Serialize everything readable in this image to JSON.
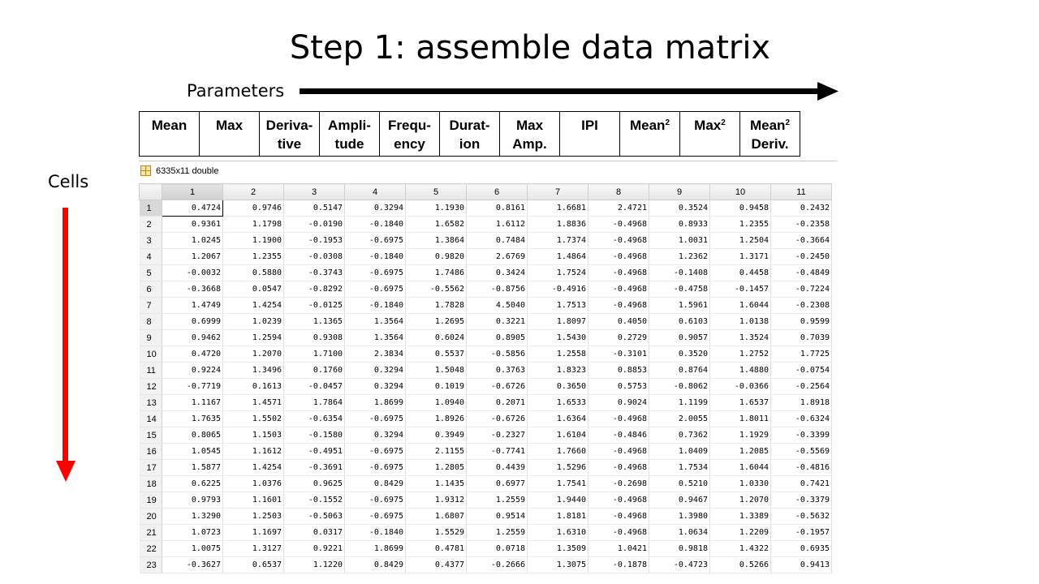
{
  "title": "Step 1: assemble data matrix",
  "parameters_label": "Parameters",
  "cells_label": "Cells",
  "colors": {
    "param_arrow": "#000000",
    "cells_arrow": "#ff0000"
  },
  "header_columns": [
    {
      "line1": "Mean",
      "line2": "",
      "sup": ""
    },
    {
      "line1": "Max",
      "line2": "",
      "sup": ""
    },
    {
      "line1": "Deriva-",
      "line2": "tive",
      "sup": ""
    },
    {
      "line1": "Ampli-",
      "line2": "tude",
      "sup": ""
    },
    {
      "line1": "Frequ-",
      "line2": "ency",
      "sup": ""
    },
    {
      "line1": "Durat-",
      "line2": "ion",
      "sup": ""
    },
    {
      "line1": "Max",
      "line2": "Amp.",
      "sup": ""
    },
    {
      "line1": "IPI",
      "line2": "",
      "sup": ""
    },
    {
      "line1": "Mean",
      "line2": "",
      "sup": "2"
    },
    {
      "line1": "Max",
      "line2": "",
      "sup": "2"
    },
    {
      "line1": "Mean",
      "line2": "Deriv.",
      "sup": "2"
    }
  ],
  "matrix_label": "6335x11 double",
  "matrix_icon": "grid-icon",
  "column_numbers": [
    "1",
    "2",
    "3",
    "4",
    "5",
    "6",
    "7",
    "8",
    "9",
    "10",
    "11"
  ],
  "rows": [
    [
      "1",
      "0.4724",
      "0.9746",
      "0.5147",
      "0.3294",
      "1.1930",
      "0.8161",
      "1.6681",
      "2.4721",
      "0.3524",
      "0.9458",
      "0.2432"
    ],
    [
      "2",
      "0.9361",
      "1.1798",
      "-0.0190",
      "-0.1840",
      "1.6582",
      "1.6112",
      "1.8836",
      "-0.4968",
      "0.8933",
      "1.2355",
      "-0.2358"
    ],
    [
      "3",
      "1.0245",
      "1.1900",
      "-0.1953",
      "-0.6975",
      "1.3864",
      "0.7484",
      "1.7374",
      "-0.4968",
      "1.0031",
      "1.2504",
      "-0.3664"
    ],
    [
      "4",
      "1.2067",
      "1.2355",
      "-0.0308",
      "-0.1840",
      "0.9820",
      "2.6769",
      "1.4864",
      "-0.4968",
      "1.2362",
      "1.3171",
      "-0.2450"
    ],
    [
      "5",
      "-0.0032",
      "0.5880",
      "-0.3743",
      "-0.6975",
      "1.7486",
      "0.3424",
      "1.7524",
      "-0.4968",
      "-0.1408",
      "0.4458",
      "-0.4849"
    ],
    [
      "6",
      "-0.3668",
      "0.0547",
      "-0.8292",
      "-0.6975",
      "-0.5562",
      "-0.8756",
      "-0.4916",
      "-0.4968",
      "-0.4758",
      "-0.1457",
      "-0.7224"
    ],
    [
      "7",
      "1.4749",
      "1.4254",
      "-0.0125",
      "-0.1840",
      "1.7828",
      "4.5040",
      "1.7513",
      "-0.4968",
      "1.5961",
      "1.6044",
      "-0.2308"
    ],
    [
      "8",
      "0.6999",
      "1.0239",
      "1.1365",
      "1.3564",
      "1.2695",
      "0.3221",
      "1.8097",
      "0.4050",
      "0.6103",
      "1.0138",
      "0.9599"
    ],
    [
      "9",
      "0.9462",
      "1.2594",
      "0.9308",
      "1.3564",
      "0.6024",
      "0.8905",
      "1.5430",
      "0.2729",
      "0.9057",
      "1.3524",
      "0.7039"
    ],
    [
      "10",
      "0.4720",
      "1.2070",
      "1.7100",
      "2.3834",
      "0.5537",
      "-0.5856",
      "1.2558",
      "-0.3101",
      "0.3520",
      "1.2752",
      "1.7725"
    ],
    [
      "11",
      "0.9224",
      "1.3496",
      "0.1760",
      "0.3294",
      "1.5048",
      "0.3763",
      "1.8323",
      "0.8853",
      "0.8764",
      "1.4880",
      "-0.0754"
    ],
    [
      "12",
      "-0.7719",
      "0.1613",
      "-0.0457",
      "0.3294",
      "0.1019",
      "-0.6726",
      "0.3650",
      "0.5753",
      "-0.8062",
      "-0.0366",
      "-0.2564"
    ],
    [
      "13",
      "1.1167",
      "1.4571",
      "1.7864",
      "1.8699",
      "1.0940",
      "0.2071",
      "1.6533",
      "0.9024",
      "1.1199",
      "1.6537",
      "1.8918"
    ],
    [
      "14",
      "1.7635",
      "1.5502",
      "-0.6354",
      "-0.6975",
      "1.8926",
      "-0.6726",
      "1.6364",
      "-0.4968",
      "2.0055",
      "1.8011",
      "-0.6324"
    ],
    [
      "15",
      "0.8065",
      "1.1503",
      "-0.1580",
      "0.3294",
      "0.3949",
      "-0.2327",
      "1.6104",
      "-0.4846",
      "0.7362",
      "1.1929",
      "-0.3399"
    ],
    [
      "16",
      "1.0545",
      "1.1612",
      "-0.4951",
      "-0.6975",
      "2.1155",
      "-0.7741",
      "1.7660",
      "-0.4968",
      "1.0409",
      "1.2085",
      "-0.5569"
    ],
    [
      "17",
      "1.5877",
      "1.4254",
      "-0.3691",
      "-0.6975",
      "1.2805",
      "0.4439",
      "1.5296",
      "-0.4968",
      "1.7534",
      "1.6044",
      "-0.4816"
    ],
    [
      "18",
      "0.6225",
      "1.0376",
      "0.9625",
      "0.8429",
      "1.1435",
      "0.6977",
      "1.7541",
      "-0.2698",
      "0.5210",
      "1.0330",
      "0.7421"
    ],
    [
      "19",
      "0.9793",
      "1.1601",
      "-0.1552",
      "-0.6975",
      "1.9312",
      "1.2559",
      "1.9440",
      "-0.4968",
      "0.9467",
      "1.2070",
      "-0.3379"
    ],
    [
      "20",
      "1.3290",
      "1.2503",
      "-0.5063",
      "-0.6975",
      "1.6807",
      "0.9514",
      "1.8181",
      "-0.4968",
      "1.3980",
      "1.3389",
      "-0.5632"
    ],
    [
      "21",
      "1.0723",
      "1.1697",
      "0.0317",
      "-0.1840",
      "1.5529",
      "1.2559",
      "1.6310",
      "-0.4968",
      "1.0634",
      "1.2209",
      "-0.1957"
    ],
    [
      "22",
      "1.0075",
      "1.3127",
      "0.9221",
      "1.8699",
      "0.4781",
      "0.0718",
      "1.3509",
      "1.0421",
      "0.9818",
      "1.4322",
      "0.6935"
    ],
    [
      "23",
      "-0.3627",
      "0.6537",
      "1.1220",
      "0.8429",
      "0.4377",
      "-0.2666",
      "1.3075",
      "-0.1878",
      "-0.4723",
      "0.5266",
      "0.9413"
    ]
  ]
}
